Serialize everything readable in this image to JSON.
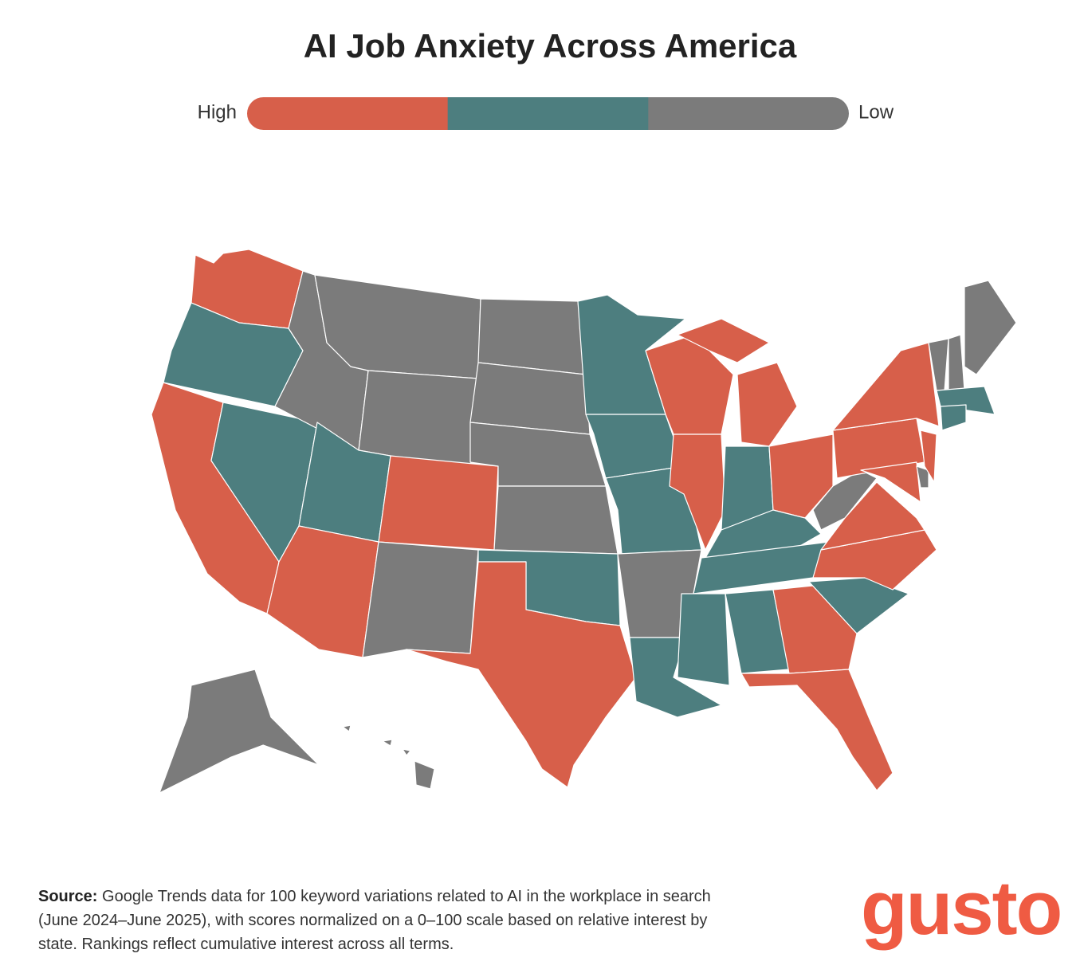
{
  "title": "AI Job Anxiety Across America",
  "legend": {
    "high_label": "High",
    "low_label": "Low",
    "colors": [
      "#d75f4a",
      "#4d7e7f",
      "#7b7b7b"
    ]
  },
  "source": {
    "label": "Source:",
    "text": "Google Trends data for 100 keyword variations related to AI in the workplace in search (June 2024–June 2025), with scores normalized on a 0–100 scale based on relative interest by state. Rankings reflect cumulative interest across all terms."
  },
  "logo": "gusto"
}
